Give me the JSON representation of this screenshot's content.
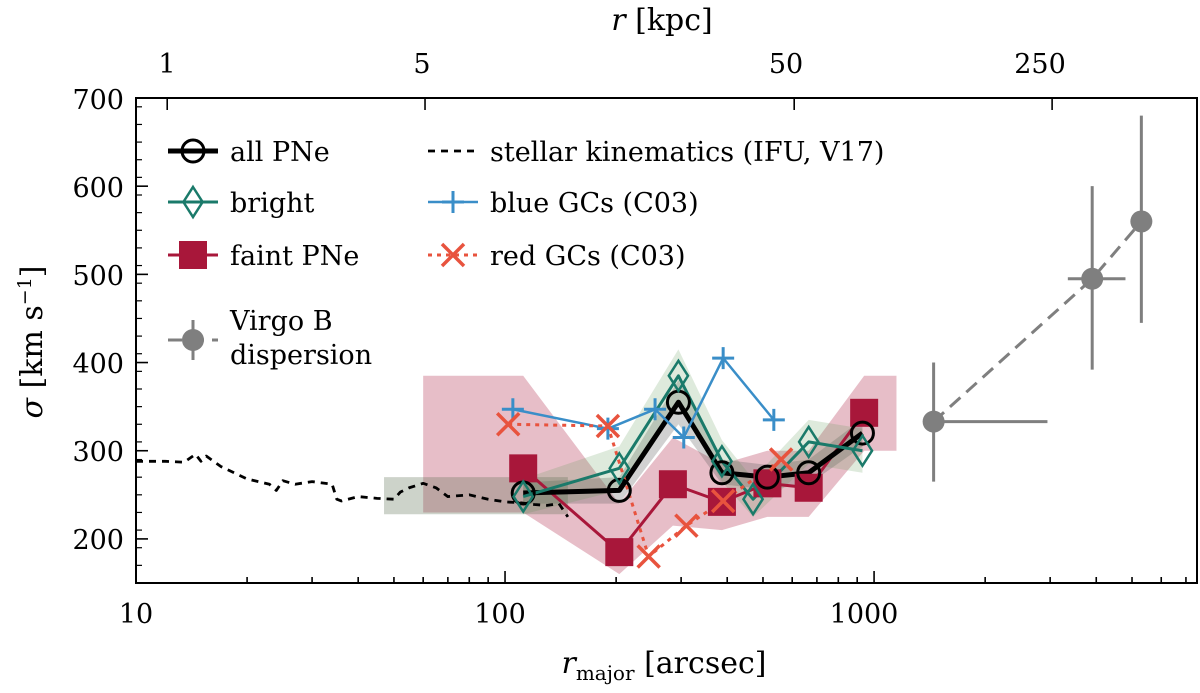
{
  "chart_data": {
    "type": "line",
    "x_axis": {
      "label": "r_major [arcsec]",
      "label_main": "r",
      "label_sub": "major",
      "label_rest": " [arcsec]",
      "scale": "log",
      "range": [
        10,
        7500
      ],
      "ticks": [
        10,
        100,
        1000
      ],
      "tick_labels": [
        "10",
        "100",
        "1000"
      ]
    },
    "x_axis_top": {
      "label": "r [kpc]",
      "label_main": "r",
      "label_rest": " [kpc]",
      "ticks_arcsec": [
        12.15,
        60.7,
        607.5,
        3037
      ],
      "tick_labels": [
        "1",
        "5",
        "50",
        "250"
      ]
    },
    "y_axis": {
      "label": "σ [km s−1]",
      "label_main": "σ",
      "label_unit": "[km s",
      "label_sup": "−1",
      "label_close": "]",
      "range": [
        150,
        700
      ],
      "ticks": [
        200,
        300,
        400,
        500,
        600,
        700
      ],
      "tick_labels": [
        "200",
        "300",
        "400",
        "500",
        "600",
        "700"
      ]
    },
    "series": [
      {
        "name": "all PNe",
        "key": "all",
        "color": "#000000",
        "marker": "circle-open",
        "line": "solid",
        "x": [
          112,
          204,
          295,
          387,
          514,
          665,
          930
        ],
        "y": [
          252,
          255,
          355,
          275,
          270,
          275,
          320
        ],
        "band_x": [
          112,
          204,
          295,
          387,
          514,
          665,
          930
        ],
        "band_low": [
          240,
          240,
          330,
          262,
          256,
          262,
          305
        ],
        "band_high": [
          264,
          270,
          380,
          290,
          284,
          290,
          336
        ]
      },
      {
        "name": "bright",
        "key": "bright",
        "color": "#1a7a6a",
        "marker": "diamond-open",
        "line": "solid",
        "x": [
          112,
          204,
          295,
          387,
          470,
          665,
          930
        ],
        "y": [
          248,
          280,
          385,
          288,
          245,
          310,
          300
        ],
        "band_x": [
          112,
          204,
          295,
          387,
          470,
          665,
          930
        ],
        "band_low": [
          228,
          255,
          355,
          265,
          225,
          285,
          275
        ],
        "band_high": [
          268,
          305,
          415,
          312,
          268,
          335,
          325
        ]
      },
      {
        "name": "faint PNe",
        "key": "faint",
        "color": "#a8173a",
        "marker": "square",
        "line": "solid",
        "x": [
          112,
          204,
          285,
          387,
          514,
          665,
          940
        ],
        "y": [
          280,
          185,
          262,
          242,
          263,
          258,
          343
        ],
        "band_x": [
          60,
          112,
          204,
          285,
          387,
          514,
          665,
          940,
          1150
        ],
        "band_low": [
          230,
          230,
          160,
          215,
          210,
          225,
          225,
          300,
          300
        ],
        "band_high": [
          385,
          385,
          240,
          315,
          285,
          300,
          300,
          385,
          385
        ]
      },
      {
        "name": "stellar kinematics (IFU, V17)",
        "key": "stellar",
        "color": "#000000",
        "marker": "none",
        "line": "dashed",
        "x": [
          10,
          12,
          13.5,
          14.5,
          15,
          15.5,
          17,
          20,
          23,
          24,
          25,
          27,
          30,
          34,
          35,
          36,
          40,
          45,
          50,
          52,
          55,
          60,
          65,
          70,
          80,
          90,
          100,
          110,
          120,
          130,
          140,
          148
        ],
        "y": [
          288,
          288,
          287,
          296,
          288,
          294,
          282,
          268,
          262,
          255,
          266,
          262,
          265,
          262,
          245,
          243,
          248,
          246,
          245,
          253,
          258,
          263,
          258,
          248,
          250,
          245,
          242,
          241,
          239,
          238,
          240,
          225
        ]
      },
      {
        "name": "blue GCs (C03)",
        "key": "blue",
        "color": "#3a8ec8",
        "marker": "plus",
        "line": "solid",
        "x": [
          105,
          190,
          255,
          305,
          390,
          535
        ],
        "y": [
          347,
          325,
          347,
          315,
          405,
          335
        ]
      },
      {
        "name": "red GCs (C03)",
        "key": "red",
        "color": "#e8533e",
        "marker": "x",
        "line": "dotted",
        "x": [
          102,
          190,
          245,
          310,
          390,
          560
        ],
        "y": [
          330,
          328,
          180,
          215,
          243,
          290
        ]
      },
      {
        "name": "Virgo B dispersion",
        "key": "virgo",
        "color": "#7f7f7f",
        "marker": "circle",
        "line": "dashed",
        "x": [
          1450,
          3900,
          5300
        ],
        "y": [
          333,
          495,
          560
        ],
        "x_err_low": [
          1400,
          3350,
          5130
        ],
        "x_err_high": [
          2950,
          4800,
          5480
        ],
        "y_err_low": [
          265,
          392,
          445
        ],
        "y_err_high": [
          400,
          600,
          680
        ]
      }
    ],
    "legend": {
      "placement": "top-left",
      "col1": [
        "all PNe",
        "bright",
        "faint PNe",
        "Virgo B",
        "dispersion"
      ],
      "col2": [
        "stellar kinematics (IFU, V17)",
        "blue GCs (C03)",
        "red GCs (C03)"
      ]
    },
    "grid": false
  }
}
